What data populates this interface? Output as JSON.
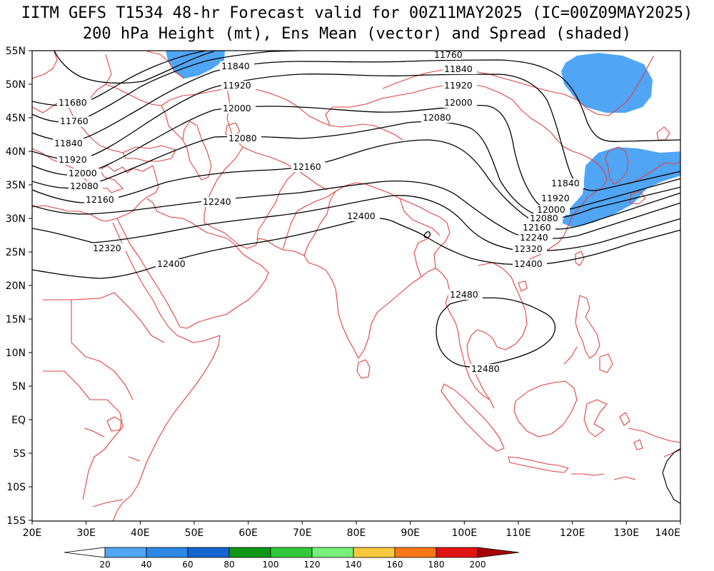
{
  "title": {
    "line1": "IITM GEFS T1534 48-hr Forecast valid for 00Z11MAY2025 (IC=00Z09MAY2025)",
    "line2": "200 hPa Height (mt), Ens Mean (vector) and Spread (shaded)"
  },
  "axes": {
    "lat_labels": [
      "55N",
      "50N",
      "45N",
      "40N",
      "35N",
      "30N",
      "25N",
      "20N",
      "15N",
      "10N",
      "5N",
      "EQ",
      "5S",
      "10S",
      "15S"
    ],
    "lon_labels": [
      "20E",
      "30E",
      "40E",
      "50E",
      "60E",
      "70E",
      "80E",
      "90E",
      "100E",
      "110E",
      "120E",
      "130E",
      "140E"
    ]
  },
  "contour_levels": [
    "11680",
    "11760",
    "11840",
    "11920",
    "12000",
    "12080",
    "12160",
    "12240",
    "12320",
    "12400",
    "12480"
  ],
  "colorbar": {
    "ticks": [
      "20",
      "40",
      "60",
      "80",
      "100",
      "120",
      "140",
      "160",
      "180",
      "200"
    ],
    "colors": [
      "#ffffff",
      "#50a5f5",
      "#2d87e6",
      "#1464d2",
      "#0f9614",
      "#32c83c",
      "#78f07a",
      "#fac83c",
      "#fa7814",
      "#e11414",
      "#a50000"
    ]
  },
  "spread_shading": {
    "color": "#50a5f5",
    "range": "20-40"
  },
  "map_style": {
    "coastline_color": "#e14141",
    "contour_color": "#000000"
  }
}
